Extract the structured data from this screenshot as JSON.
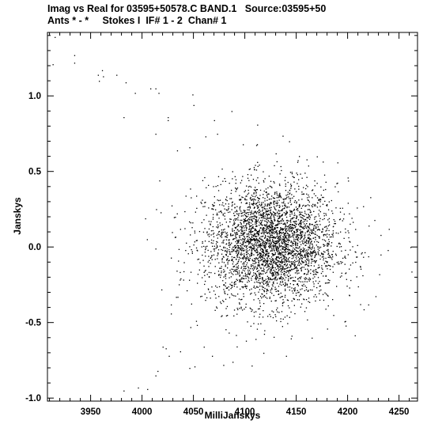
{
  "header": {
    "line1": "Imag vs Real for 03595+50578.C BAND.1   Source:03595+50",
    "line2": "Ants * - *     Stokes I  IF# 1 - 2  Chan# 1"
  },
  "chart_data": {
    "type": "scatter",
    "xlabel": "MilliJanskys",
    "ylabel": "Janskys",
    "xlim": [
      3908,
      4268
    ],
    "ylim": [
      -1.02,
      1.42
    ],
    "xticks": [
      3950,
      4000,
      4050,
      4100,
      4150,
      4200,
      4250
    ],
    "yticks": [
      -1.0,
      -0.5,
      0.0,
      0.5,
      1.0
    ],
    "ytick_labels": [
      "-1.0",
      "-0.5",
      "0.0",
      "0.5",
      "1.0"
    ],
    "cluster": {
      "center": [
        4125,
        0.02
      ],
      "spread": [
        32,
        0.2
      ],
      "count": 3600
    },
    "points": [
      [
        3913,
        1.21
      ],
      [
        3915,
        1.39
      ],
      [
        3934,
        1.27
      ],
      [
        3934,
        1.22
      ],
      [
        3957,
        1.14
      ],
      [
        3958,
        1.1
      ],
      [
        3961,
        1.17
      ],
      [
        3962,
        1.13
      ],
      [
        3975,
        1.14
      ],
      [
        3984,
        1.09
      ],
      [
        3993,
        1.02
      ],
      [
        3982,
        0.86
      ],
      [
        4008,
        1.05
      ],
      [
        4013,
        1.05
      ],
      [
        4016,
        1.02
      ],
      [
        4013,
        0.75
      ],
      [
        4025,
        0.86
      ],
      [
        4025,
        0.84
      ],
      [
        4034,
        0.64
      ],
      [
        4049,
        1.01
      ],
      [
        4050,
        0.94
      ],
      [
        4046,
        0.66
      ],
      [
        4070,
        0.84
      ],
      [
        4073,
        0.75
      ],
      [
        4003,
        0.19
      ],
      [
        4018,
        0.23
      ],
      [
        4013,
        -0.01
      ],
      [
        4032,
        0.2
      ],
      [
        4037,
        0.12
      ],
      [
        4028,
        -0.07
      ],
      [
        4035,
        -0.09
      ],
      [
        4042,
        -0.02
      ],
      [
        4033,
        -0.33
      ],
      [
        4028,
        -0.38
      ],
      [
        4028,
        -0.44
      ],
      [
        4047,
        -0.53
      ],
      [
        4020,
        -0.66
      ],
      [
        4023,
        -0.67
      ],
      [
        4026,
        -0.72
      ],
      [
        4037,
        -0.69
      ],
      [
        4051,
        -0.79
      ],
      [
        4046,
        -0.8
      ],
      [
        4015,
        -0.82
      ],
      [
        4013,
        -0.85
      ],
      [
        4005,
        -0.94
      ],
      [
        3982,
        -0.95
      ],
      [
        3996,
        -0.93
      ],
      [
        4180,
        -0.54
      ],
      [
        4210,
        -0.26
      ],
      [
        4220,
        -0.38
      ],
      [
        4232,
        -0.05
      ],
      [
        4239,
        -0.02
      ],
      [
        4232,
        0.08
      ],
      [
        4215,
        0.27
      ],
      [
        4200,
        0.46
      ],
      [
        4190,
        0.56
      ],
      [
        4170,
        0.6
      ],
      [
        4143,
        0.7
      ],
      [
        4112,
        0.81
      ],
      [
        4087,
        0.9
      ],
      [
        4098,
        0.68
      ],
      [
        4130,
        0.62
      ],
      [
        4160,
        0.58
      ],
      [
        4101,
        -0.62
      ],
      [
        4118,
        -0.7
      ],
      [
        4140,
        -0.72
      ],
      [
        4165,
        -0.6
      ],
      [
        4088,
        -0.76
      ],
      [
        4079,
        -0.78
      ],
      [
        4060,
        -0.66
      ],
      [
        4068,
        -0.72
      ],
      [
        4186,
        -0.45
      ],
      [
        4261,
        0.0
      ],
      [
        4198,
        -0.52
      ],
      [
        4222,
        0.33
      ],
      [
        4240,
        0.12
      ]
    ]
  }
}
